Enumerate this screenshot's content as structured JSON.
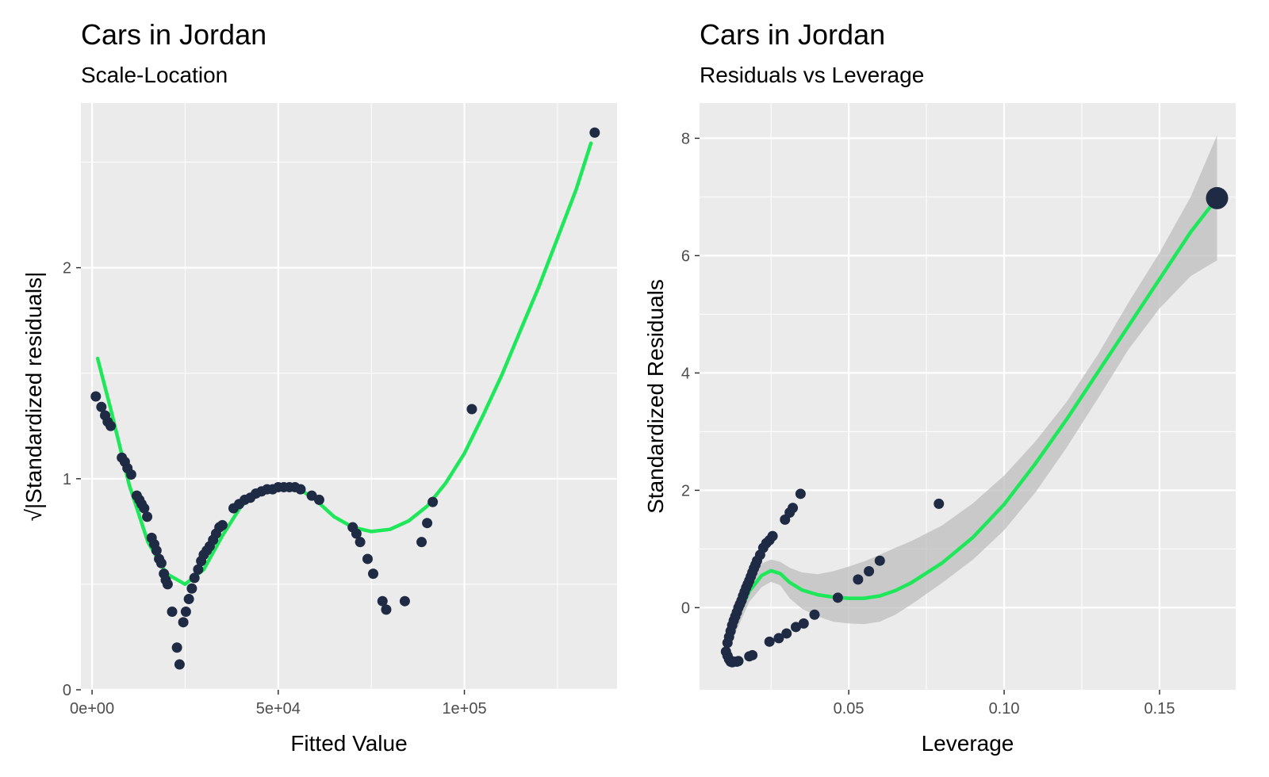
{
  "colors": {
    "panel_bg": "#ebebeb",
    "grid": "#ffffff",
    "point": "#1f2a44",
    "smooth": "#1ee85a",
    "ribbon": "#bdbdbd",
    "tick_text": "#4d4d4d"
  },
  "chart_data": [
    {
      "type": "scatter",
      "title": "Cars in Jordan",
      "subtitle": "Scale-Location",
      "xlabel": "Fitted Value",
      "ylabel": "√|Standardized residuals|",
      "xlim": [
        -3000,
        141000
      ],
      "ylim": [
        0,
        2.78
      ],
      "x_ticks": [
        0,
        50000,
        100000
      ],
      "x_tick_labels": [
        "0e+00",
        "5e+04",
        "1e+05"
      ],
      "y_ticks": [
        0,
        1,
        2
      ],
      "y_tick_labels": [
        "0",
        "1",
        "2"
      ],
      "grid": true,
      "series": [
        {
          "kind": "points",
          "points": [
            [
              1000,
              1.39
            ],
            [
              2500,
              1.34
            ],
            [
              3500,
              1.3
            ],
            [
              4200,
              1.27
            ],
            [
              5000,
              1.25
            ],
            [
              8000,
              1.1
            ],
            [
              8800,
              1.08
            ],
            [
              9500,
              1.05
            ],
            [
              10500,
              1.02
            ],
            [
              12000,
              0.92
            ],
            [
              12700,
              0.9
            ],
            [
              13300,
              0.88
            ],
            [
              14000,
              0.86
            ],
            [
              14800,
              0.82
            ],
            [
              16000,
              0.72
            ],
            [
              16700,
              0.69
            ],
            [
              17300,
              0.66
            ],
            [
              18000,
              0.62
            ],
            [
              18600,
              0.6
            ],
            [
              19300,
              0.55
            ],
            [
              19800,
              0.52
            ],
            [
              20300,
              0.5
            ],
            [
              21500,
              0.37
            ],
            [
              22800,
              0.2
            ],
            [
              23500,
              0.12
            ],
            [
              24500,
              0.32
            ],
            [
              25200,
              0.37
            ],
            [
              26000,
              0.43
            ],
            [
              26800,
              0.48
            ],
            [
              27500,
              0.53
            ],
            [
              28500,
              0.57
            ],
            [
              29300,
              0.61
            ],
            [
              30000,
              0.64
            ],
            [
              30800,
              0.66
            ],
            [
              31600,
              0.68
            ],
            [
              32500,
              0.71
            ],
            [
              33300,
              0.74
            ],
            [
              34200,
              0.77
            ],
            [
              35000,
              0.78
            ],
            [
              38000,
              0.86
            ],
            [
              39500,
              0.88
            ],
            [
              41000,
              0.9
            ],
            [
              42500,
              0.91
            ],
            [
              44000,
              0.93
            ],
            [
              45500,
              0.94
            ],
            [
              47000,
              0.95
            ],
            [
              48500,
              0.95
            ],
            [
              50000,
              0.96
            ],
            [
              51500,
              0.96
            ],
            [
              53000,
              0.96
            ],
            [
              54500,
              0.96
            ],
            [
              56000,
              0.95
            ],
            [
              59000,
              0.92
            ],
            [
              61000,
              0.9
            ],
            [
              70000,
              0.77
            ],
            [
              71000,
              0.74
            ],
            [
              72000,
              0.7
            ],
            [
              74000,
              0.62
            ],
            [
              75500,
              0.55
            ],
            [
              78000,
              0.42
            ],
            [
              79000,
              0.38
            ],
            [
              84000,
              0.42
            ],
            [
              88500,
              0.7
            ],
            [
              90000,
              0.79
            ],
            [
              91500,
              0.89
            ],
            [
              102000,
              1.33
            ],
            [
              135000,
              2.64
            ]
          ]
        },
        {
          "kind": "smooth",
          "points": [
            [
              1500,
              1.57
            ],
            [
              5000,
              1.33
            ],
            [
              10000,
              0.97
            ],
            [
              15000,
              0.7
            ],
            [
              20000,
              0.55
            ],
            [
              25000,
              0.5
            ],
            [
              30000,
              0.57
            ],
            [
              35000,
              0.73
            ],
            [
              40000,
              0.87
            ],
            [
              45000,
              0.94
            ],
            [
              50000,
              0.97
            ],
            [
              55000,
              0.96
            ],
            [
              60000,
              0.9
            ],
            [
              65000,
              0.82
            ],
            [
              70000,
              0.77
            ],
            [
              75000,
              0.75
            ],
            [
              80000,
              0.76
            ],
            [
              85000,
              0.8
            ],
            [
              90000,
              0.87
            ],
            [
              95000,
              0.98
            ],
            [
              100000,
              1.12
            ],
            [
              105000,
              1.3
            ],
            [
              110000,
              1.49
            ],
            [
              115000,
              1.7
            ],
            [
              120000,
              1.91
            ],
            [
              125000,
              2.14
            ],
            [
              130000,
              2.37
            ],
            [
              134000,
              2.59
            ]
          ]
        }
      ]
    },
    {
      "type": "scatter",
      "title": "Cars in Jordan",
      "subtitle": "Residuals vs Leverage",
      "xlabel": "Leverage",
      "ylabel": "Standardized Residuals",
      "xlim": [
        0.002,
        0.1745
      ],
      "ylim": [
        -1.4,
        8.6
      ],
      "x_ticks": [
        0.05,
        0.1,
        0.15
      ],
      "x_tick_labels": [
        "0.05",
        "0.10",
        "0.15"
      ],
      "y_ticks": [
        0,
        2,
        4,
        6,
        8
      ],
      "y_tick_labels": [
        "0",
        "2",
        "4",
        "6",
        "8"
      ],
      "grid": true,
      "series": [
        {
          "kind": "points",
          "points": [
            [
              0.0105,
              -0.75
            ],
            [
              0.011,
              -0.82
            ],
            [
              0.0115,
              -0.88
            ],
            [
              0.012,
              -0.92
            ],
            [
              0.0125,
              -0.93
            ],
            [
              0.013,
              -0.92
            ],
            [
              0.014,
              -0.92
            ],
            [
              0.0145,
              -0.91
            ],
            [
              0.018,
              -0.83
            ],
            [
              0.019,
              -0.81
            ],
            [
              0.011,
              -0.6
            ],
            [
              0.0115,
              -0.5
            ],
            [
              0.012,
              -0.4
            ],
            [
              0.0125,
              -0.3
            ],
            [
              0.013,
              -0.22
            ],
            [
              0.0135,
              -0.15
            ],
            [
              0.014,
              -0.08
            ],
            [
              0.0145,
              0.0
            ],
            [
              0.015,
              0.06
            ],
            [
              0.0155,
              0.12
            ],
            [
              0.016,
              0.2
            ],
            [
              0.0165,
              0.27
            ],
            [
              0.017,
              0.34
            ],
            [
              0.0175,
              0.4
            ],
            [
              0.018,
              0.46
            ],
            [
              0.0185,
              0.53
            ],
            [
              0.019,
              0.6
            ],
            [
              0.0195,
              0.67
            ],
            [
              0.02,
              0.73
            ],
            [
              0.0205,
              0.8
            ],
            [
              0.0215,
              0.9
            ],
            [
              0.0225,
              1.02
            ],
            [
              0.0235,
              1.1
            ],
            [
              0.0245,
              1.15
            ],
            [
              0.0255,
              1.22
            ],
            [
              0.0295,
              1.5
            ],
            [
              0.031,
              1.62
            ],
            [
              0.032,
              1.7
            ],
            [
              0.0345,
              1.94
            ],
            [
              0.0245,
              -0.58
            ],
            [
              0.0275,
              -0.52
            ],
            [
              0.03,
              -0.44
            ],
            [
              0.033,
              -0.33
            ],
            [
              0.0355,
              -0.27
            ],
            [
              0.039,
              -0.12
            ],
            [
              0.0465,
              0.17
            ],
            [
              0.053,
              0.48
            ],
            [
              0.0565,
              0.62
            ],
            [
              0.06,
              0.8
            ],
            [
              0.079,
              1.77
            ]
          ]
        },
        {
          "kind": "highlight",
          "points": [
            [
              0.1685,
              6.98
            ]
          ]
        },
        {
          "kind": "smooth",
          "points": [
            [
              0.0105,
              -0.6
            ],
            [
              0.014,
              -0.2
            ],
            [
              0.018,
              0.28
            ],
            [
              0.022,
              0.55
            ],
            [
              0.025,
              0.63
            ],
            [
              0.028,
              0.58
            ],
            [
              0.031,
              0.43
            ],
            [
              0.035,
              0.3
            ],
            [
              0.04,
              0.22
            ],
            [
              0.045,
              0.18
            ],
            [
              0.05,
              0.16
            ],
            [
              0.055,
              0.16
            ],
            [
              0.06,
              0.2
            ],
            [
              0.065,
              0.29
            ],
            [
              0.07,
              0.42
            ],
            [
              0.08,
              0.76
            ],
            [
              0.09,
              1.2
            ],
            [
              0.1,
              1.76
            ],
            [
              0.11,
              2.45
            ],
            [
              0.12,
              3.2
            ],
            [
              0.13,
              4.0
            ],
            [
              0.14,
              4.8
            ],
            [
              0.15,
              5.6
            ],
            [
              0.16,
              6.4
            ],
            [
              0.1685,
              6.98
            ]
          ]
        },
        {
          "kind": "ribbon_upper",
          "points": [
            [
              0.0105,
              -0.5
            ],
            [
              0.014,
              -0.02
            ],
            [
              0.018,
              0.45
            ],
            [
              0.022,
              0.75
            ],
            [
              0.025,
              0.82
            ],
            [
              0.028,
              0.78
            ],
            [
              0.031,
              0.68
            ],
            [
              0.035,
              0.6
            ],
            [
              0.04,
              0.57
            ],
            [
              0.045,
              0.62
            ],
            [
              0.05,
              0.7
            ],
            [
              0.055,
              0.79
            ],
            [
              0.06,
              0.9
            ],
            [
              0.065,
              1.02
            ],
            [
              0.07,
              1.13
            ],
            [
              0.08,
              1.4
            ],
            [
              0.09,
              1.78
            ],
            [
              0.1,
              2.25
            ],
            [
              0.11,
              2.83
            ],
            [
              0.12,
              3.5
            ],
            [
              0.13,
              4.3
            ],
            [
              0.14,
              5.2
            ],
            [
              0.15,
              6.05
            ],
            [
              0.16,
              7.0
            ],
            [
              0.1685,
              8.05
            ]
          ]
        },
        {
          "kind": "ribbon_lower",
          "points": [
            [
              0.0105,
              -0.7
            ],
            [
              0.014,
              -0.38
            ],
            [
              0.018,
              0.1
            ],
            [
              0.022,
              0.35
            ],
            [
              0.025,
              0.44
            ],
            [
              0.028,
              0.38
            ],
            [
              0.031,
              0.16
            ],
            [
              0.035,
              -0.02
            ],
            [
              0.04,
              -0.15
            ],
            [
              0.045,
              -0.24
            ],
            [
              0.05,
              -0.27
            ],
            [
              0.055,
              -0.28
            ],
            [
              0.06,
              -0.24
            ],
            [
              0.065,
              -0.12
            ],
            [
              0.07,
              0.05
            ],
            [
              0.08,
              0.42
            ],
            [
              0.09,
              0.82
            ],
            [
              0.1,
              1.32
            ],
            [
              0.11,
              1.96
            ],
            [
              0.12,
              2.72
            ],
            [
              0.13,
              3.55
            ],
            [
              0.14,
              4.4
            ],
            [
              0.15,
              5.1
            ],
            [
              0.16,
              5.65
            ],
            [
              0.1685,
              5.92
            ]
          ]
        }
      ]
    }
  ]
}
